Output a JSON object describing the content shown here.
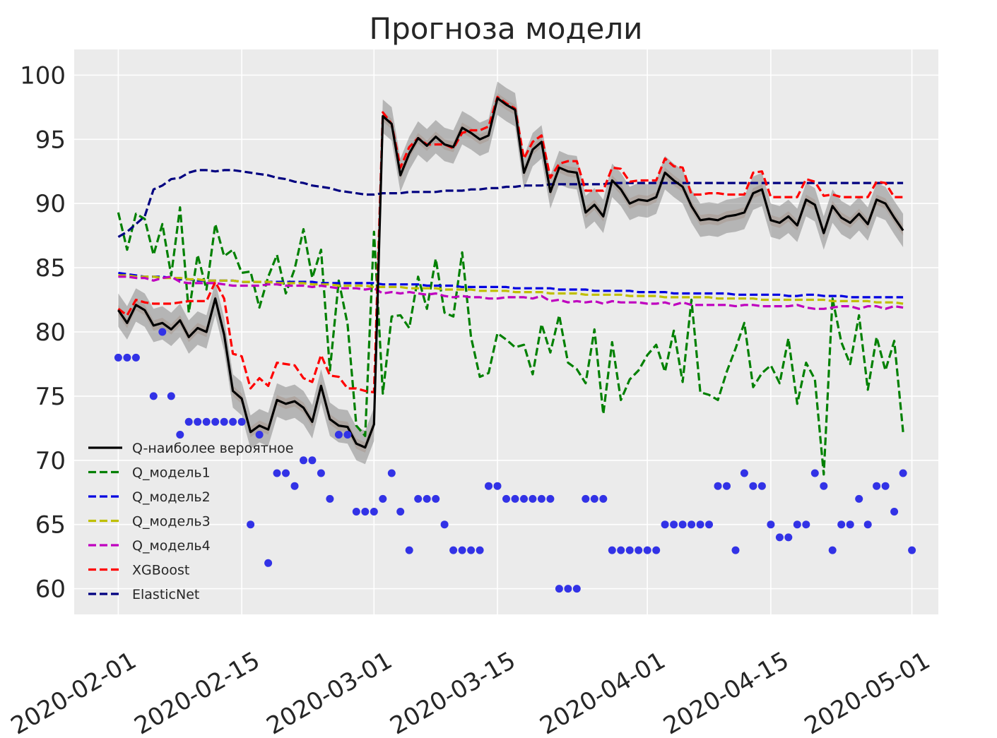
{
  "chart_data": {
    "type": "line",
    "title": "Прогноза модели",
    "xlabel": "",
    "ylabel": "",
    "x_range": [
      "2020-01-27",
      "2020-05-04"
    ],
    "ylim": [
      58,
      102
    ],
    "y_ticks": [
      60,
      65,
      70,
      75,
      80,
      85,
      90,
      95,
      100
    ],
    "x_ticks": [
      "2020-02-01",
      "2020-02-15",
      "2020-03-01",
      "2020-03-15",
      "2020-04-01",
      "2020-04-15",
      "2020-05-01"
    ],
    "grid": true,
    "legend_placement": "lower-left",
    "x_start": "2020-02-01",
    "x_step_days": 1,
    "series": [
      {
        "name": "Q-наиболее вероятное",
        "style": "solid",
        "color": "#000000",
        "values": [
          81.7,
          80.7,
          82.1,
          81.7,
          80.5,
          80.7,
          80.2,
          80.9,
          79.6,
          80.3,
          80.0,
          82.6,
          79.8,
          75.4,
          74.8,
          72.2,
          72.7,
          72.4,
          74.7,
          74.4,
          74.6,
          74.1,
          73.0,
          75.8,
          73.2,
          72.7,
          72.6,
          71.3,
          71.0,
          72.8,
          96.8,
          96.2,
          92.2,
          93.9,
          95.1,
          94.5,
          95.2,
          94.6,
          94.4,
          95.9,
          95.5,
          95.0,
          95.3,
          98.2,
          97.7,
          97.3,
          92.4,
          94.2,
          94.8,
          90.9,
          92.8,
          92.5,
          92.4,
          89.3,
          89.9,
          89.0,
          91.8,
          91.1,
          90.0,
          90.3,
          90.2,
          90.5,
          92.4,
          91.8,
          91.3,
          89.8,
          88.7,
          88.8,
          88.7,
          89.0,
          89.1,
          89.3,
          90.8,
          91.1,
          88.7,
          88.5,
          89.0,
          88.3,
          90.3,
          89.9,
          87.7,
          89.8,
          88.9,
          88.5,
          89.2,
          88.4,
          90.3,
          90.0,
          88.9,
          87.9
        ]
      },
      {
        "name": "Q_модель1",
        "style": "dashed",
        "color": "#008000",
        "values": [
          89.3,
          86.4,
          89.2,
          88.8,
          86.0,
          88.4,
          84.4,
          89.7,
          81.5,
          86.0,
          83.3,
          88.4,
          85.9,
          86.4,
          84.6,
          84.7,
          81.9,
          84.3,
          86.0,
          83.0,
          84.9,
          88.0,
          84.2,
          86.4,
          77.0,
          84.0,
          80.6,
          72.7,
          71.9,
          87.8,
          75.2,
          81.2,
          81.3,
          80.3,
          84.3,
          81.8,
          85.7,
          81.5,
          81.2,
          86.2,
          79.6,
          76.5,
          76.8,
          79.9,
          79.4,
          78.8,
          79.0,
          76.7,
          80.6,
          78.4,
          81.3,
          77.6,
          77.1,
          76.0,
          80.2,
          73.6,
          79.2,
          74.7,
          76.3,
          77.0,
          78.2,
          79.0,
          76.9,
          80.1,
          76.1,
          82.5,
          75.3,
          75.1,
          74.7,
          76.9,
          78.7,
          80.7,
          75.7,
          76.8,
          77.4,
          76.0,
          79.5,
          74.4,
          77.6,
          76.3,
          68.9,
          82.6,
          79.2,
          77.5,
          81.3,
          75.5,
          79.6,
          77.0,
          79.3,
          72.2
        ]
      },
      {
        "name": "Q_модель2",
        "style": "dashed",
        "color": "#0000e0",
        "values": [
          84.6,
          84.5,
          84.4,
          84.3,
          84.3,
          84.3,
          84.2,
          84.1,
          84.1,
          84.0,
          84.0,
          84.0,
          84.0,
          84.0,
          83.9,
          83.9,
          83.9,
          83.9,
          83.9,
          83.9,
          83.9,
          83.9,
          83.9,
          83.8,
          83.8,
          83.8,
          83.8,
          83.8,
          83.8,
          83.8,
          83.7,
          83.7,
          83.7,
          83.7,
          83.7,
          83.6,
          83.6,
          83.6,
          83.6,
          83.5,
          83.5,
          83.5,
          83.5,
          83.5,
          83.5,
          83.4,
          83.4,
          83.4,
          83.4,
          83.4,
          83.3,
          83.3,
          83.3,
          83.3,
          83.2,
          83.2,
          83.2,
          83.2,
          83.2,
          83.1,
          83.1,
          83.1,
          83.1,
          83.0,
          83.0,
          83.0,
          83.0,
          83.0,
          83.0,
          83.0,
          82.9,
          82.9,
          82.9,
          82.9,
          82.9,
          82.9,
          82.8,
          82.8,
          82.9,
          82.9,
          82.8,
          82.8,
          82.8,
          82.7,
          82.7,
          82.7,
          82.7,
          82.7,
          82.7,
          82.7
        ]
      },
      {
        "name": "Q_модель3",
        "style": "dashed",
        "color": "#bfbf00",
        "values": [
          84.4,
          84.4,
          84.3,
          84.3,
          84.3,
          84.2,
          84.2,
          84.2,
          84.1,
          84.1,
          84.0,
          84.0,
          84.0,
          84.0,
          83.9,
          83.9,
          83.9,
          83.9,
          83.8,
          83.8,
          83.8,
          83.8,
          83.7,
          83.7,
          83.7,
          83.6,
          83.6,
          83.6,
          83.6,
          83.5,
          83.5,
          83.5,
          83.5,
          83.4,
          83.4,
          83.4,
          83.4,
          83.3,
          83.3,
          83.3,
          83.3,
          83.2,
          83.2,
          83.2,
          83.2,
          83.1,
          83.1,
          83.1,
          83.1,
          83.0,
          83.0,
          83.0,
          83.0,
          82.9,
          82.9,
          82.9,
          82.9,
          82.9,
          82.8,
          82.8,
          82.8,
          82.8,
          82.7,
          82.7,
          82.7,
          82.7,
          82.7,
          82.7,
          82.6,
          82.6,
          82.6,
          82.6,
          82.6,
          82.5,
          82.5,
          82.5,
          82.5,
          82.5,
          82.5,
          82.5,
          82.5,
          82.4,
          82.4,
          82.4,
          82.4,
          82.4,
          82.3,
          82.3,
          82.3,
          82.2
        ]
      },
      {
        "name": "Q_модель4",
        "style": "dashed",
        "color": "#bf00bf",
        "values": [
          84.3,
          84.3,
          84.2,
          84.2,
          84.0,
          84.2,
          84.3,
          83.9,
          83.8,
          83.8,
          83.8,
          83.8,
          83.7,
          83.6,
          83.6,
          83.6,
          83.6,
          83.7,
          83.7,
          83.6,
          83.6,
          83.6,
          83.5,
          83.6,
          83.5,
          83.4,
          83.4,
          83.4,
          83.3,
          83.4,
          83.0,
          83.1,
          83.0,
          83.1,
          83.0,
          82.9,
          83.0,
          82.8,
          82.7,
          82.8,
          82.7,
          82.7,
          82.6,
          82.6,
          82.7,
          82.7,
          82.7,
          82.6,
          82.8,
          82.4,
          82.5,
          82.3,
          82.4,
          82.3,
          82.4,
          82.2,
          82.4,
          82.3,
          82.3,
          82.3,
          82.2,
          82.2,
          82.3,
          82.1,
          82.3,
          82.1,
          82.1,
          82.1,
          82.1,
          82.1,
          82.0,
          82.1,
          82.1,
          82.0,
          82.0,
          82.0,
          82.0,
          82.1,
          81.9,
          81.8,
          81.8,
          81.9,
          82.0,
          82.0,
          81.8,
          82.0,
          82.0,
          81.8,
          82.0,
          81.9
        ]
      },
      {
        "name": "XGBoost",
        "style": "dashed",
        "color": "#ff0000",
        "values": [
          81.8,
          81.3,
          82.5,
          82.3,
          82.2,
          82.2,
          82.2,
          82.3,
          82.4,
          82.4,
          82.4,
          83.9,
          82.6,
          78.3,
          78.1,
          75.6,
          76.4,
          75.8,
          77.6,
          77.5,
          77.4,
          76.4,
          76.1,
          78.2,
          76.6,
          76.5,
          75.6,
          75.6,
          75.4,
          75.3,
          97.1,
          96.2,
          92.8,
          94.4,
          95.1,
          94.6,
          94.6,
          94.6,
          94.3,
          95.5,
          95.7,
          95.7,
          96.0,
          98.3,
          97.8,
          97.4,
          93.5,
          94.8,
          95.3,
          92.0,
          93.1,
          93.3,
          93.3,
          91.0,
          91.0,
          91.0,
          92.8,
          92.7,
          91.7,
          91.8,
          91.8,
          91.8,
          93.5,
          92.9,
          92.8,
          90.7,
          90.7,
          90.8,
          90.8,
          90.7,
          90.7,
          90.7,
          92.4,
          92.5,
          90.5,
          90.5,
          90.5,
          90.5,
          91.9,
          91.7,
          90.6,
          90.7,
          90.5,
          90.5,
          90.5,
          90.5,
          91.7,
          91.6,
          90.5,
          90.5
        ]
      },
      {
        "name": "ElasticNet",
        "style": "dashed",
        "color": "#000080",
        "values": [
          87.4,
          87.8,
          88.4,
          89.0,
          91.1,
          91.4,
          91.9,
          92.0,
          92.4,
          92.6,
          92.6,
          92.5,
          92.6,
          92.6,
          92.5,
          92.4,
          92.3,
          92.2,
          92.0,
          91.9,
          91.7,
          91.6,
          91.4,
          91.3,
          91.2,
          91.0,
          90.9,
          90.8,
          90.7,
          90.7,
          90.8,
          90.8,
          90.8,
          90.9,
          90.9,
          90.9,
          90.9,
          91.0,
          91.0,
          91.0,
          91.1,
          91.1,
          91.2,
          91.2,
          91.3,
          91.3,
          91.4,
          91.4,
          91.4,
          91.5,
          91.5,
          91.5,
          91.5,
          91.5,
          91.5,
          91.5,
          91.6,
          91.6,
          91.6,
          91.6,
          91.6,
          91.6,
          91.6,
          91.6,
          91.6,
          91.6,
          91.6,
          91.6,
          91.6,
          91.6,
          91.6,
          91.6,
          91.6,
          91.6,
          91.6,
          91.6,
          91.6,
          91.6,
          91.6,
          91.6,
          91.6,
          91.6,
          91.6,
          91.6,
          91.6,
          91.6,
          91.6,
          91.6,
          91.6,
          91.6
        ]
      }
    ],
    "actual_points": {
      "color": "#3232e6",
      "values": [
        78,
        78,
        78,
        null,
        75,
        80,
        75,
        72,
        73,
        73,
        73,
        73,
        73,
        73,
        73,
        65,
        72,
        62,
        69,
        69,
        68,
        70,
        70,
        69,
        67,
        72,
        72,
        66,
        66,
        66,
        67,
        69,
        66,
        63,
        67,
        67,
        67,
        65,
        63,
        63,
        63,
        63,
        68,
        68,
        67,
        67,
        67,
        67,
        67,
        67,
        60,
        60,
        60,
        67,
        67,
        67,
        63,
        63,
        63,
        63,
        63,
        63,
        65,
        65,
        65,
        65,
        65,
        65,
        68,
        68,
        63,
        69,
        68,
        68,
        65,
        64,
        64,
        65,
        65,
        69,
        68,
        63,
        65,
        65,
        67,
        65,
        68,
        68,
        66,
        69,
        63
      ]
    },
    "uncertainty_band": {
      "color": "#808080",
      "half_width_inner": 0.4,
      "half_width_outer": 1.3
    }
  }
}
